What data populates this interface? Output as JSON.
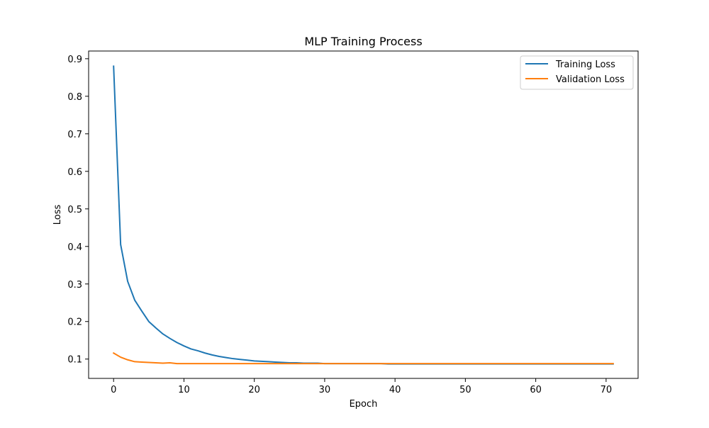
{
  "chart_data": {
    "type": "line",
    "title": "MLP Training Process",
    "xlabel": "Epoch",
    "ylabel": "Loss",
    "xlim": [
      -3.55,
      74.55
    ],
    "ylim": [
      0.0485,
      0.9205
    ],
    "xticks": [
      0,
      10,
      20,
      30,
      40,
      50,
      60,
      70
    ],
    "yticks": [
      0.1,
      0.2,
      0.3,
      0.4,
      0.5,
      0.6,
      0.7,
      0.8,
      0.9
    ],
    "grid": false,
    "legend_position": "top-right",
    "x": [
      0,
      1,
      2,
      3,
      4,
      5,
      6,
      7,
      8,
      9,
      10,
      11,
      12,
      13,
      14,
      15,
      16,
      17,
      18,
      19,
      20,
      21,
      22,
      23,
      24,
      25,
      26,
      27,
      28,
      29,
      30,
      31,
      32,
      33,
      34,
      35,
      36,
      37,
      38,
      39,
      40,
      41,
      42,
      43,
      44,
      45,
      46,
      47,
      48,
      49,
      50,
      51,
      52,
      53,
      54,
      55,
      56,
      57,
      58,
      59,
      60,
      61,
      62,
      63,
      64,
      65,
      66,
      67,
      68,
      69,
      70,
      71
    ],
    "series": [
      {
        "name": "Training Loss",
        "color": "#1f77b4",
        "values": [
          0.88,
          0.405,
          0.307,
          0.257,
          0.228,
          0.2,
          0.183,
          0.167,
          0.155,
          0.144,
          0.135,
          0.127,
          0.122,
          0.116,
          0.111,
          0.107,
          0.104,
          0.101,
          0.099,
          0.097,
          0.095,
          0.094,
          0.093,
          0.092,
          0.091,
          0.09,
          0.09,
          0.089,
          0.089,
          0.089,
          0.088,
          0.088,
          0.088,
          0.088,
          0.088,
          0.088,
          0.088,
          0.088,
          0.088,
          0.087,
          0.087,
          0.087,
          0.087,
          0.087,
          0.087,
          0.087,
          0.087,
          0.087,
          0.087,
          0.087,
          0.087,
          0.087,
          0.087,
          0.087,
          0.087,
          0.087,
          0.087,
          0.087,
          0.087,
          0.087,
          0.087,
          0.087,
          0.087,
          0.087,
          0.087,
          0.087,
          0.087,
          0.087,
          0.087,
          0.087,
          0.087,
          0.087
        ]
      },
      {
        "name": "Validation Loss",
        "color": "#ff7f0e",
        "values": [
          0.116,
          0.105,
          0.098,
          0.093,
          0.092,
          0.091,
          0.09,
          0.089,
          0.09,
          0.088,
          0.088,
          0.088,
          0.088,
          0.088,
          0.088,
          0.088,
          0.088,
          0.088,
          0.088,
          0.088,
          0.088,
          0.088,
          0.088,
          0.088,
          0.088,
          0.088,
          0.088,
          0.088,
          0.088,
          0.088,
          0.088,
          0.088,
          0.088,
          0.088,
          0.088,
          0.088,
          0.088,
          0.088,
          0.088,
          0.088,
          0.088,
          0.088,
          0.088,
          0.088,
          0.088,
          0.088,
          0.088,
          0.088,
          0.088,
          0.088,
          0.088,
          0.088,
          0.088,
          0.088,
          0.088,
          0.088,
          0.088,
          0.088,
          0.088,
          0.088,
          0.088,
          0.088,
          0.088,
          0.088,
          0.088,
          0.088,
          0.088,
          0.088,
          0.088,
          0.088,
          0.088,
          0.088
        ]
      }
    ]
  }
}
